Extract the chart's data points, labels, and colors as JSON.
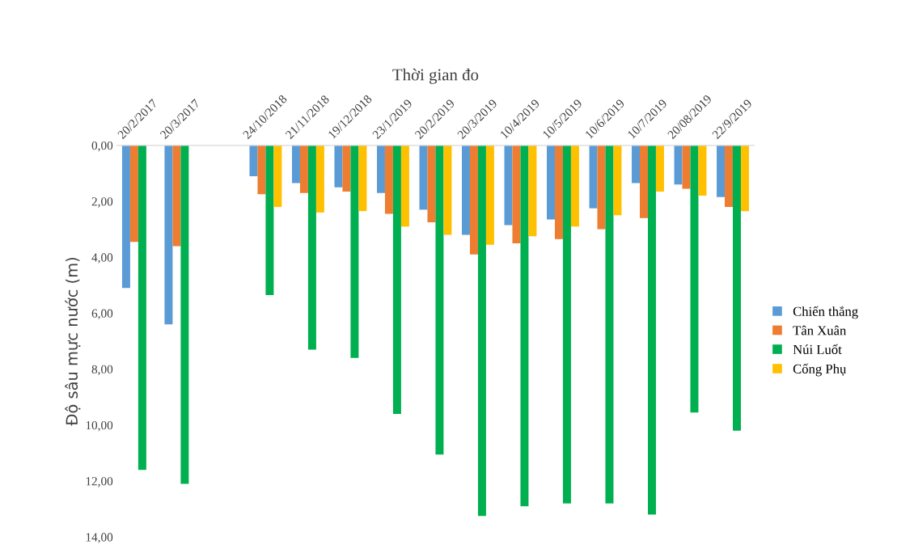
{
  "chart_data": {
    "type": "bar",
    "xlabel": "Thời gian đo",
    "ylabel": "Độ sâu mực nước (m)",
    "categories": [
      "20/2/2017",
      "20/3/2017",
      null,
      "24/10/2018",
      "21/11/2018",
      "19/12/2018",
      "23/1/2019",
      "20/2/2019",
      "20/3/2019",
      "10/4/2019",
      "10/5/2019",
      "10/6/2019",
      "10/7/2019",
      "20/08/2019",
      "22/9/2019"
    ],
    "series": [
      {
        "name": "Chiến thắng",
        "color": "#5b9bd5",
        "values": [
          5.1,
          6.4,
          null,
          1.1,
          1.35,
          1.5,
          1.7,
          2.3,
          3.2,
          2.85,
          2.65,
          2.25,
          1.35,
          1.4,
          1.85
        ]
      },
      {
        "name": "Tân Xuân",
        "color": "#ed7d31",
        "values": [
          3.45,
          3.6,
          null,
          1.75,
          1.7,
          1.65,
          2.45,
          2.75,
          3.9,
          3.5,
          3.35,
          3.0,
          2.6,
          1.55,
          2.2
        ]
      },
      {
        "name": "Núi Luốt",
        "color": "#00b050",
        "values": [
          11.6,
          12.1,
          null,
          5.35,
          7.3,
          7.6,
          9.6,
          11.05,
          13.25,
          12.9,
          12.8,
          12.8,
          13.2,
          9.55,
          10.2
        ]
      },
      {
        "name": "Cống Phụ",
        "color": "#ffc000",
        "values": [
          null,
          null,
          null,
          2.2,
          2.4,
          2.35,
          2.9,
          3.2,
          3.55,
          3.25,
          2.9,
          2.5,
          1.65,
          1.8,
          2.35
        ]
      }
    ],
    "ylim": [
      14,
      0
    ],
    "yticks": [
      {
        "value": 0,
        "label": "0,00"
      },
      {
        "value": 2,
        "label": "2,00"
      },
      {
        "value": 4,
        "label": "4,00"
      },
      {
        "value": 6,
        "label": "6,00"
      },
      {
        "value": 8,
        "label": "8,00"
      },
      {
        "value": 10,
        "label": "10,00"
      },
      {
        "value": 12,
        "label": "12,00"
      },
      {
        "value": 14,
        "label": "14,00"
      }
    ],
    "grid": false,
    "legend": "right"
  }
}
